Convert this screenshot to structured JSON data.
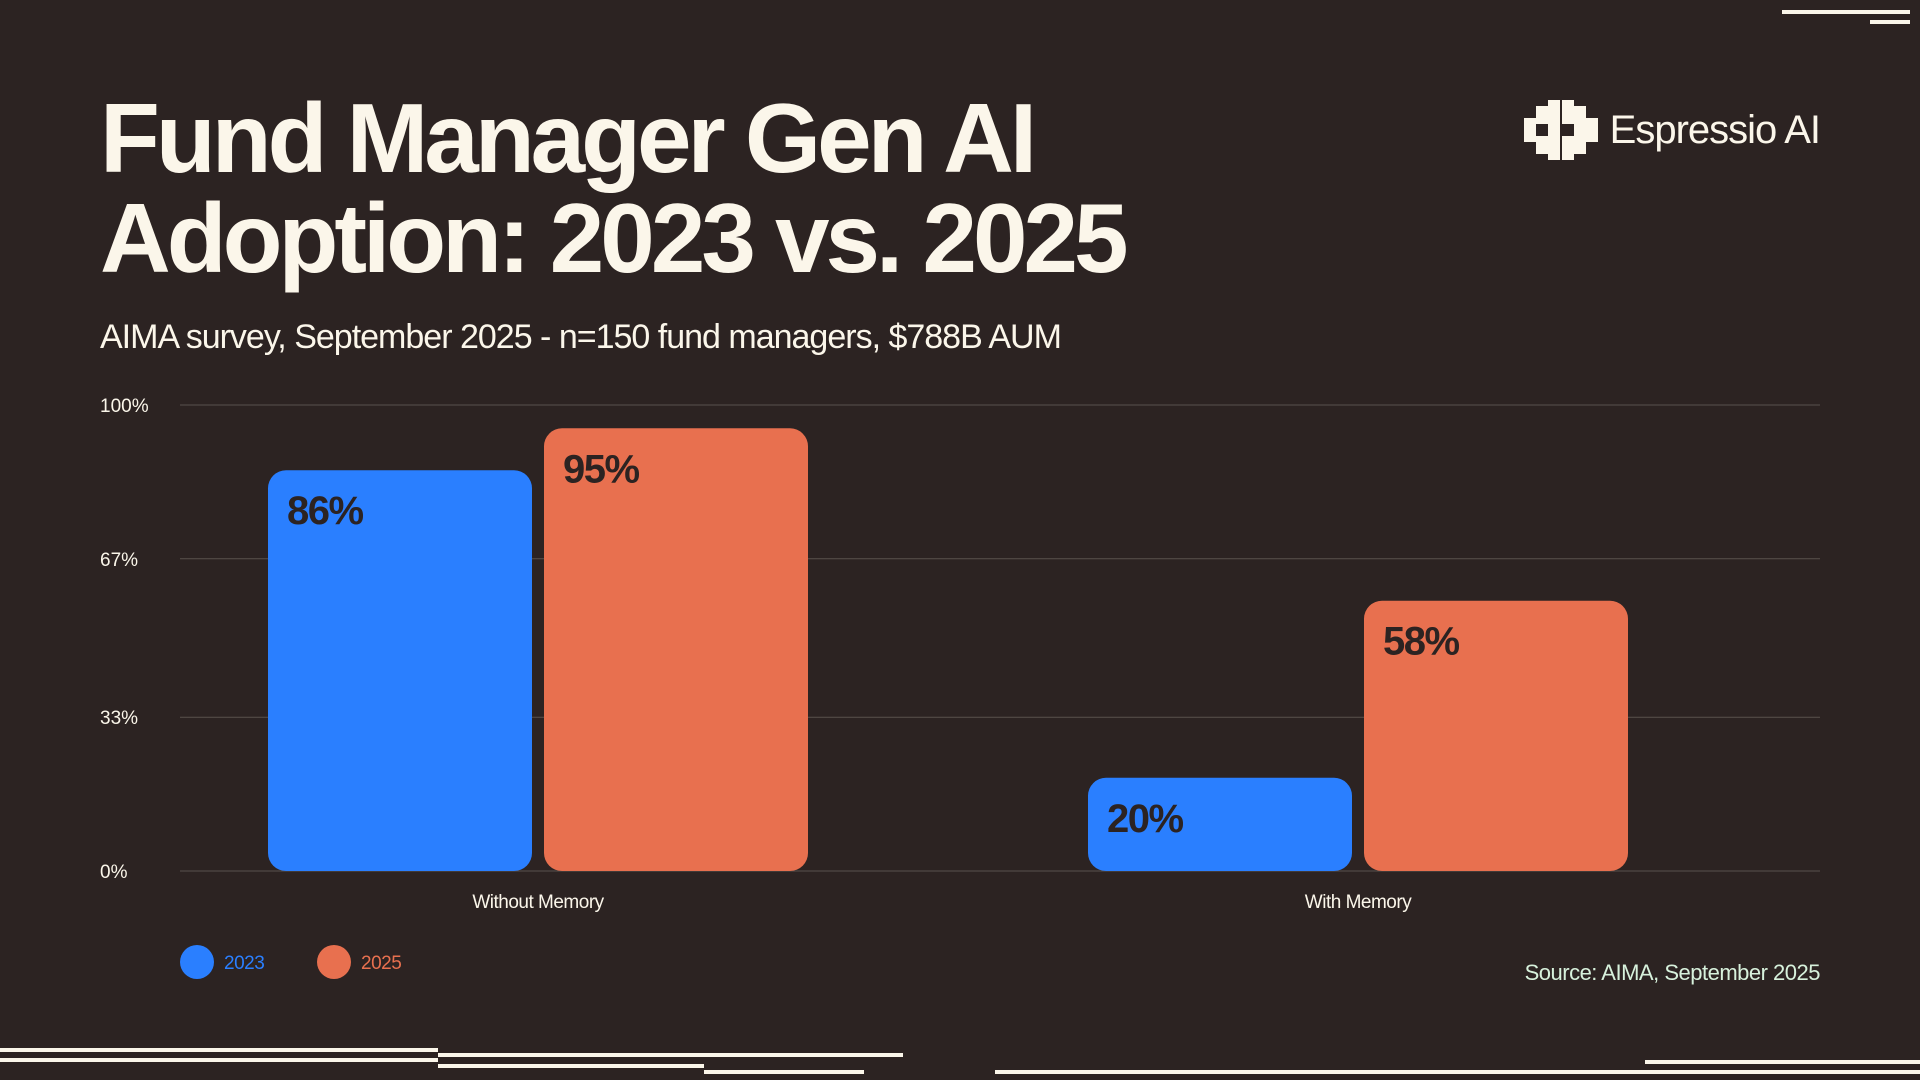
{
  "header": {
    "title_line1": "Fund Manager Gen AI",
    "title_line2": "Adoption: 2023 vs. 2025",
    "subtitle": "AIMA survey, September 2025 - n=150 fund managers, $788B AUM"
  },
  "brand": {
    "name": "Espressio AI",
    "logo_icon": "espressio-logo-icon"
  },
  "footer": {
    "source": "Source: AIMA, September 2025"
  },
  "colors": {
    "background": "#2c2322",
    "text": "#fbf6ea",
    "source_text": "#d7f1dc",
    "series_2023": "#2a7fff",
    "series_2025": "#e8704f"
  },
  "chart_data": {
    "type": "bar",
    "title": "Fund Manager Gen AI Adoption: 2023 vs. 2025",
    "subtitle": "AIMA survey, September 2025 - n=150 fund managers, $788B AUM",
    "categories": [
      "Without Memory",
      "With Memory"
    ],
    "series": [
      {
        "name": "2023",
        "values": [
          86,
          20
        ],
        "labels": [
          "86%",
          "20%"
        ],
        "color": "#2a7fff"
      },
      {
        "name": "2025",
        "values": [
          95,
          58
        ],
        "labels": [
          "95%",
          "58%"
        ],
        "color": "#e8704f"
      }
    ],
    "ylim": [
      0,
      100
    ],
    "yticks": [
      0,
      33,
      67,
      100
    ],
    "ytick_labels": [
      "0%",
      "33%",
      "67%",
      "100%"
    ],
    "grid": true,
    "legend_position": "bottom-left"
  }
}
